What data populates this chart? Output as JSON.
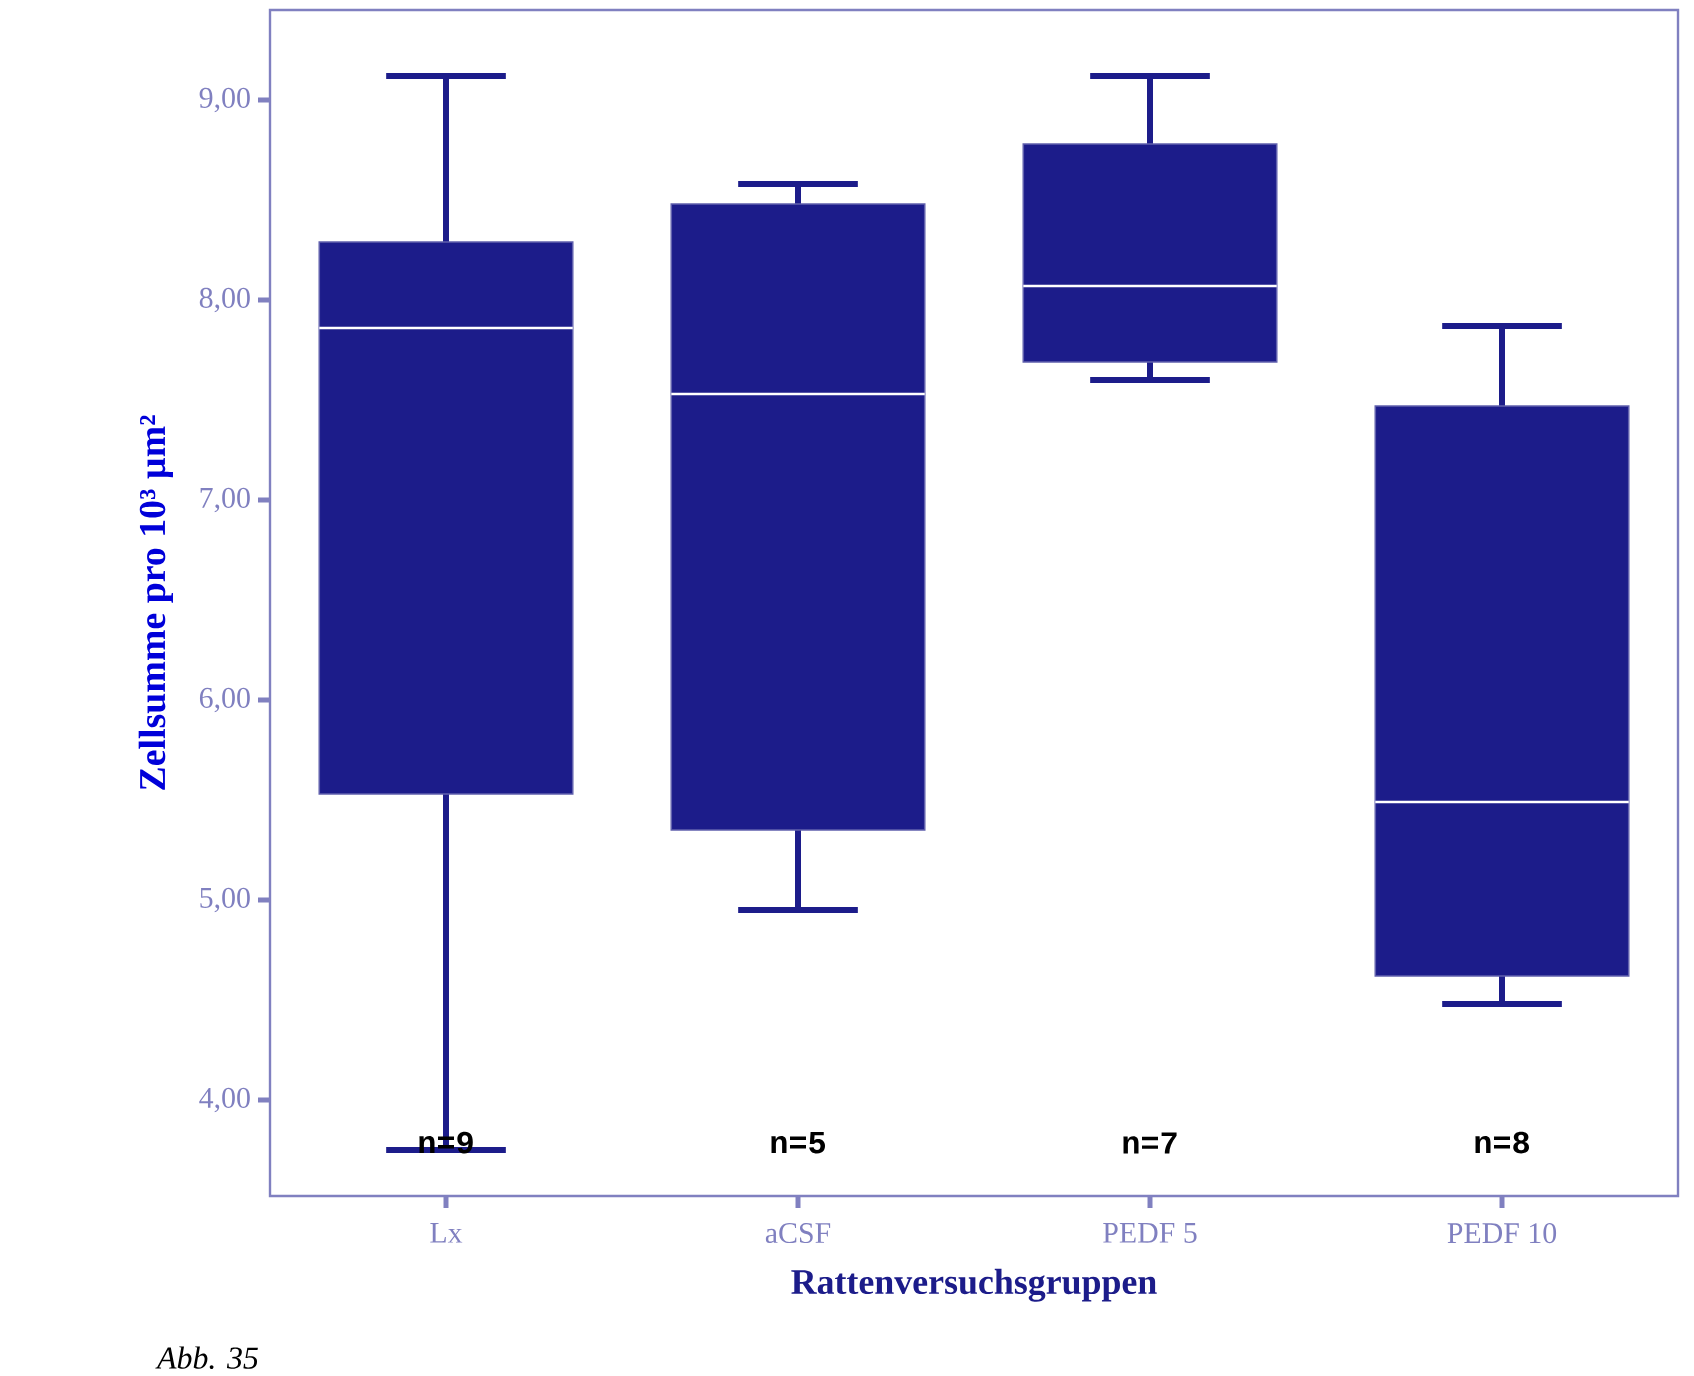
{
  "chart_data": {
    "type": "box",
    "xlabel": "Rattenversuchsgruppen",
    "ylabel": "Zellsumme pro 10³ µm²",
    "categories": [
      "Lx",
      "aCSF",
      "PEDF 5",
      "PEDF 10"
    ],
    "boxes": [
      {
        "low": 3.75,
        "q1": 5.53,
        "median": 7.86,
        "q3": 8.29,
        "high": 9.12
      },
      {
        "low": 4.95,
        "q1": 5.35,
        "median": 7.53,
        "q3": 8.48,
        "high": 8.58
      },
      {
        "low": 7.6,
        "q1": 7.69,
        "median": 8.07,
        "q3": 8.78,
        "high": 9.12
      },
      {
        "low": 4.48,
        "q1": 4.62,
        "median": 5.49,
        "q3": 7.47,
        "high": 7.87
      }
    ],
    "color": "#1c1c8a",
    "ylim": [
      3.52,
      9.45
    ],
    "yticks": [
      {
        "value": 4,
        "label": "4,00"
      },
      {
        "value": 5,
        "label": "5,00"
      },
      {
        "value": 6,
        "label": "6,00"
      },
      {
        "value": 7,
        "label": "7,00"
      },
      {
        "value": 8,
        "label": "8,00"
      },
      {
        "value": 9,
        "label": "9,00"
      }
    ],
    "annotations": [
      "n=9",
      "n=5",
      "n=7",
      "n=8",
      "Abb. 35"
    ]
  }
}
